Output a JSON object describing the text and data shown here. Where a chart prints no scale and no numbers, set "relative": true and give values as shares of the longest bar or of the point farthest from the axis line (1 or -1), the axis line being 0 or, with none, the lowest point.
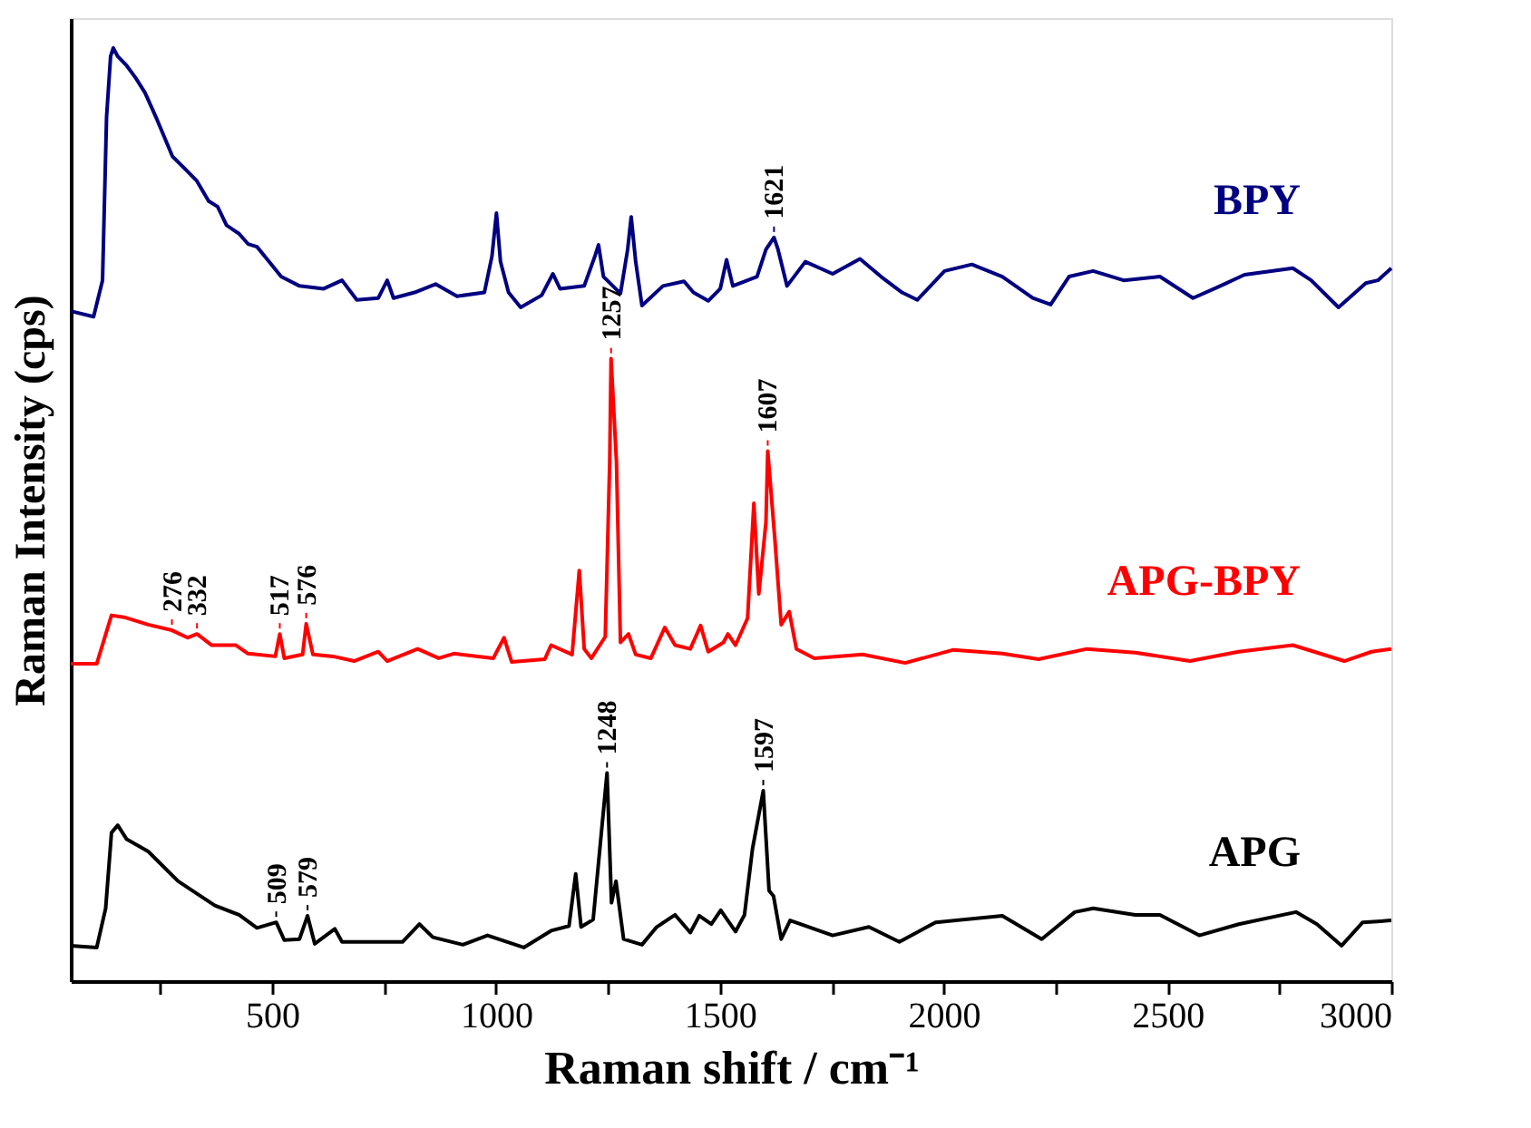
{
  "chart_data": {
    "type": "line",
    "relative": true,
    "xlabel": "Raman shift / cm⁻¹",
    "ylabel": "Raman Intensity (cps)",
    "xlim": [
      50,
      3000
    ],
    "xticks": [
      {
        "value": 250,
        "label": null
      },
      500,
      {
        "value": 750,
        "label": null
      },
      1000,
      {
        "value": 1250,
        "label": null
      },
      1500,
      {
        "value": 1750,
        "label": null
      },
      2000,
      {
        "value": 2250,
        "label": null
      },
      2500,
      {
        "value": 2750,
        "label": null
      },
      3000
    ],
    "tick_labels": "x",
    "grid": false,
    "legend": false,
    "marker": "none",
    "line_style": "solid",
    "series": [
      {
        "name": "BPY",
        "color": "#000080",
        "x": [
          50,
          101,
          121,
          130,
          139,
          145,
          155,
          175,
          195,
          216,
          243,
          277,
          304,
          331,
          358,
          378,
          398,
          426,
          446,
          466,
          493,
          520,
          561,
          615,
          656,
          689,
          737,
          757,
          771,
          818,
          865,
          913,
          974,
          991,
          1001,
          1010,
          1028,
          1055,
          1102,
          1127,
          1143,
          1197,
          1221,
          1229,
          1240,
          1278,
          1294,
          1302,
          1312,
          1326,
          1373,
          1420,
          1441,
          1474,
          1501,
          1515,
          1529,
          1583,
          1603,
          1621,
          1630,
          1650,
          1691,
          1752,
          1813,
          1860,
          1907,
          1941,
          2002,
          2063,
          2131,
          2199,
          2239,
          2280,
          2334,
          2402,
          2483,
          2557,
          2618,
          2672,
          2780,
          2821,
          2882,
          2943,
          2970,
          3000
        ],
        "values": [
          0.718,
          0.712,
          0.751,
          0.926,
          0.991,
          1.0,
          0.991,
          0.981,
          0.968,
          0.952,
          0.923,
          0.884,
          0.871,
          0.858,
          0.836,
          0.83,
          0.81,
          0.801,
          0.79,
          0.787,
          0.771,
          0.755,
          0.745,
          0.742,
          0.751,
          0.73,
          0.732,
          0.751,
          0.732,
          0.738,
          0.747,
          0.734,
          0.738,
          0.777,
          0.823,
          0.771,
          0.738,
          0.722,
          0.735,
          0.758,
          0.742,
          0.745,
          0.777,
          0.789,
          0.755,
          0.737,
          0.784,
          0.819,
          0.771,
          0.724,
          0.745,
          0.75,
          0.738,
          0.729,
          0.742,
          0.773,
          0.745,
          0.755,
          0.784,
          0.797,
          0.784,
          0.745,
          0.771,
          0.758,
          0.774,
          0.755,
          0.738,
          0.73,
          0.761,
          0.768,
          0.755,
          0.732,
          0.725,
          0.755,
          0.761,
          0.751,
          0.755,
          0.732,
          0.745,
          0.757,
          0.764,
          0.751,
          0.722,
          0.748,
          0.751,
          0.764
        ]
      },
      {
        "name": "APG-BPY",
        "color": "#ff0000",
        "x": [
          50,
          108,
          141,
          169,
          223,
          276,
          311,
          332,
          365,
          419,
          446,
          507,
          517,
          527,
          568,
          576,
          591,
          636,
          683,
          737,
          757,
          825,
          872,
          906,
          994,
          1018,
          1035,
          1109,
          1123,
          1170,
          1186,
          1197,
          1213,
          1244,
          1254,
          1257,
          1269,
          1278,
          1296,
          1312,
          1346,
          1377,
          1400,
          1434,
          1457,
          1474,
          1508,
          1518,
          1535,
          1562,
          1576,
          1587,
          1603,
          1607,
          1623,
          1637,
          1655,
          1671,
          1711,
          1819,
          1914,
          2022,
          2131,
          2212,
          2320,
          2428,
          2550,
          2659,
          2780,
          2895,
          2956,
          3000
        ],
        "values": [
          0.34,
          0.34,
          0.392,
          0.39,
          0.382,
          0.376,
          0.368,
          0.372,
          0.36,
          0.36,
          0.351,
          0.348,
          0.372,
          0.346,
          0.35,
          0.383,
          0.35,
          0.348,
          0.343,
          0.353,
          0.343,
          0.356,
          0.346,
          0.351,
          0.346,
          0.368,
          0.342,
          0.345,
          0.36,
          0.35,
          0.44,
          0.356,
          0.346,
          0.369,
          0.557,
          0.667,
          0.557,
          0.363,
          0.372,
          0.35,
          0.346,
          0.379,
          0.36,
          0.356,
          0.381,
          0.353,
          0.363,
          0.372,
          0.36,
          0.389,
          0.512,
          0.415,
          0.492,
          0.568,
          0.473,
          0.382,
          0.396,
          0.356,
          0.346,
          0.35,
          0.341,
          0.355,
          0.351,
          0.345,
          0.356,
          0.352,
          0.343,
          0.353,
          0.36,
          0.343,
          0.353,
          0.356
        ]
      },
      {
        "name": "APG",
        "color": "#000000",
        "x": [
          50,
          108,
          128,
          141,
          155,
          175,
          223,
          290,
          372,
          426,
          466,
          509,
          527,
          561,
          579,
          595,
          640,
          656,
          737,
          791,
          829,
          859,
          926,
          981,
          1062,
          1123,
          1163,
          1178,
          1190,
          1217,
          1248,
          1258,
          1268,
          1285,
          1326,
          1359,
          1400,
          1434,
          1454,
          1481,
          1502,
          1535,
          1555,
          1573,
          1597,
          1610,
          1620,
          1637,
          1657,
          1752,
          1833,
          1901,
          1982,
          2131,
          2219,
          2293,
          2334,
          2428,
          2483,
          2571,
          2659,
          2787,
          2834,
          2889,
          2936,
          3000
        ],
        "values": [
          0.038,
          0.036,
          0.078,
          0.159,
          0.167,
          0.152,
          0.139,
          0.107,
          0.081,
          0.071,
          0.057,
          0.063,
          0.044,
          0.045,
          0.07,
          0.04,
          0.056,
          0.042,
          0.042,
          0.042,
          0.061,
          0.047,
          0.039,
          0.049,
          0.036,
          0.054,
          0.059,
          0.115,
          0.058,
          0.066,
          0.223,
          0.084,
          0.107,
          0.045,
          0.039,
          0.058,
          0.071,
          0.052,
          0.07,
          0.061,
          0.076,
          0.053,
          0.071,
          0.142,
          0.204,
          0.097,
          0.091,
          0.045,
          0.065,
          0.049,
          0.058,
          0.042,
          0.063,
          0.07,
          0.045,
          0.074,
          0.078,
          0.071,
          0.071,
          0.049,
          0.061,
          0.074,
          0.061,
          0.038,
          0.063,
          0.065
        ]
      }
    ],
    "annotations": [
      {
        "text": "1621",
        "x": 1621,
        "y": 0.797
      },
      {
        "text": "276",
        "x": 276,
        "y": 0.376
      },
      {
        "text": "332",
        "x": 332,
        "y": 0.372
      },
      {
        "text": "517",
        "x": 517,
        "y": 0.372
      },
      {
        "text": "576",
        "x": 576,
        "y": 0.383
      },
      {
        "text": "1257",
        "x": 1257,
        "y": 0.667
      },
      {
        "text": "1607",
        "x": 1607,
        "y": 0.568
      },
      {
        "text": "509",
        "x": 509,
        "y": 0.063
      },
      {
        "text": "579",
        "x": 579,
        "y": 0.07
      },
      {
        "text": "1248",
        "x": 1248,
        "y": 0.223
      },
      {
        "text": "1597",
        "x": 1597,
        "y": 0.204
      }
    ]
  }
}
